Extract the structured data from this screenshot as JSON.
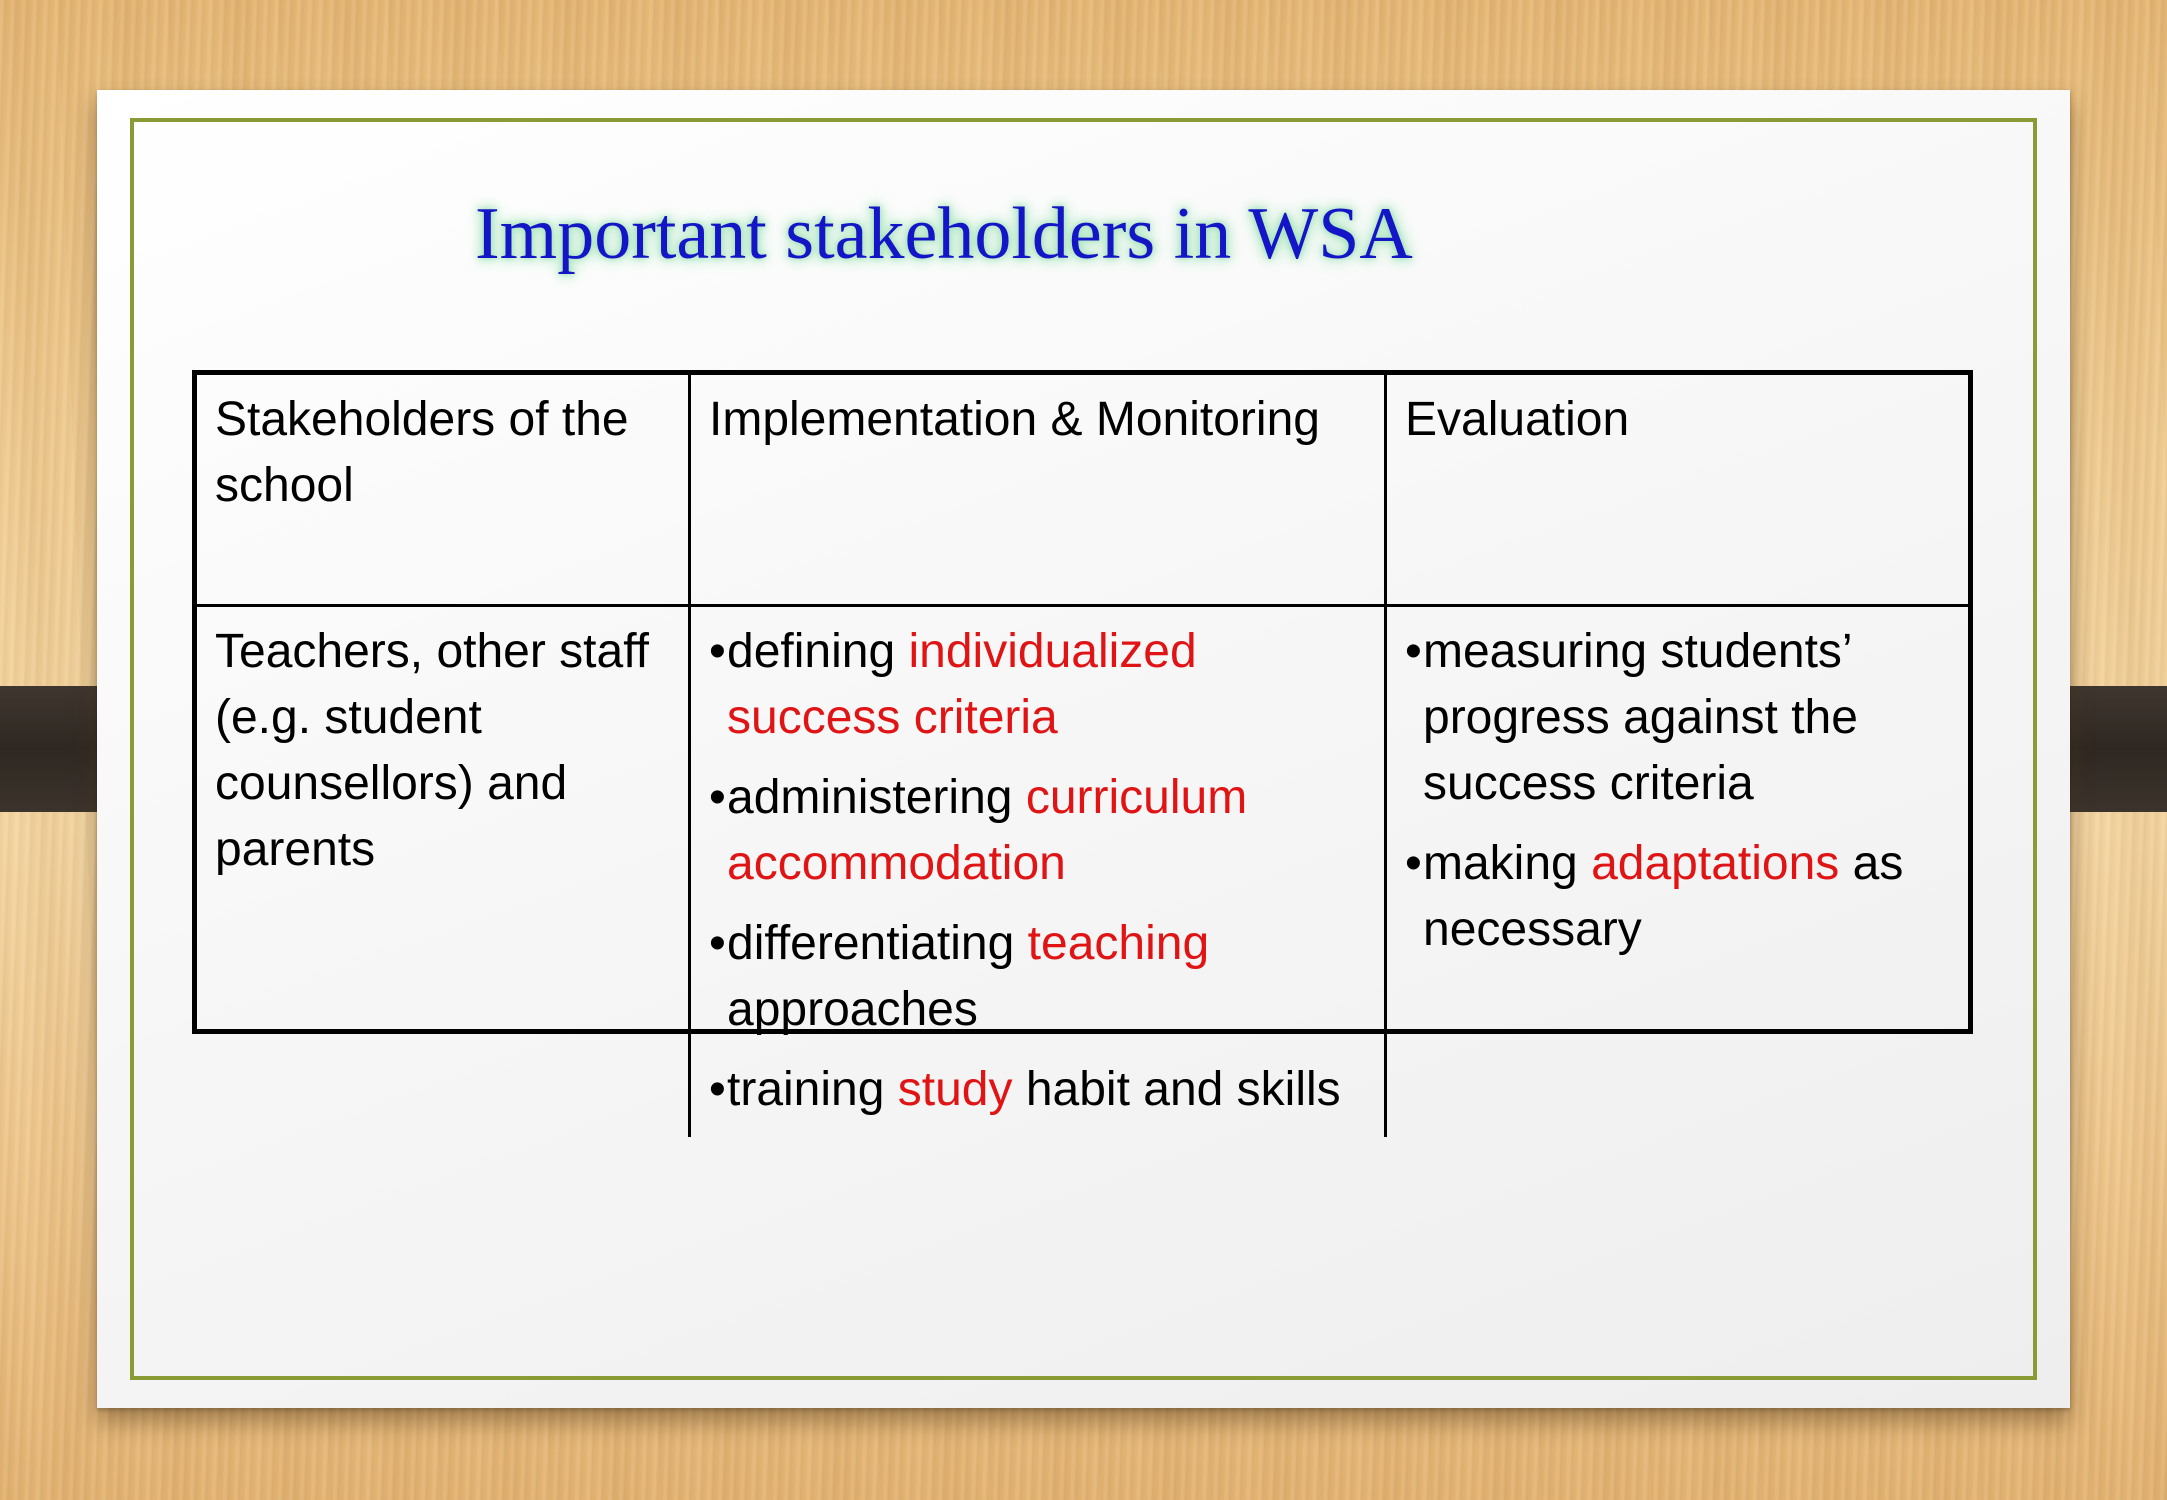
{
  "slide": {
    "title": "Important stakeholders in WSA",
    "colors": {
      "title": "#1515c8",
      "title_glow": "#9ae0b4",
      "highlight": "#e01414",
      "frame_border": "#8a9a34"
    }
  },
  "table": {
    "headers": [
      "Stakeholders of the school",
      "Implementation & Monitoring",
      "Evaluation"
    ],
    "stakeholders": "Teachers, other staff (e.g. student counsellors) and parents",
    "implementation": [
      {
        "text": "defining ",
        "highlight": "individualized success criteria",
        "rest": ""
      },
      {
        "text": "administering ",
        "highlight": "curriculum accommodation",
        "rest": ""
      },
      {
        "text": "differentiating ",
        "highlight": "teaching",
        "rest": " approaches"
      },
      {
        "text": "training ",
        "highlight": "study",
        "rest": " habit and skills"
      }
    ],
    "evaluation": [
      {
        "text": "measuring students’ progress against the success criteria",
        "highlight": "",
        "rest": ""
      },
      {
        "text": "making ",
        "highlight": "adaptations",
        "rest": " as necessary"
      }
    ]
  }
}
